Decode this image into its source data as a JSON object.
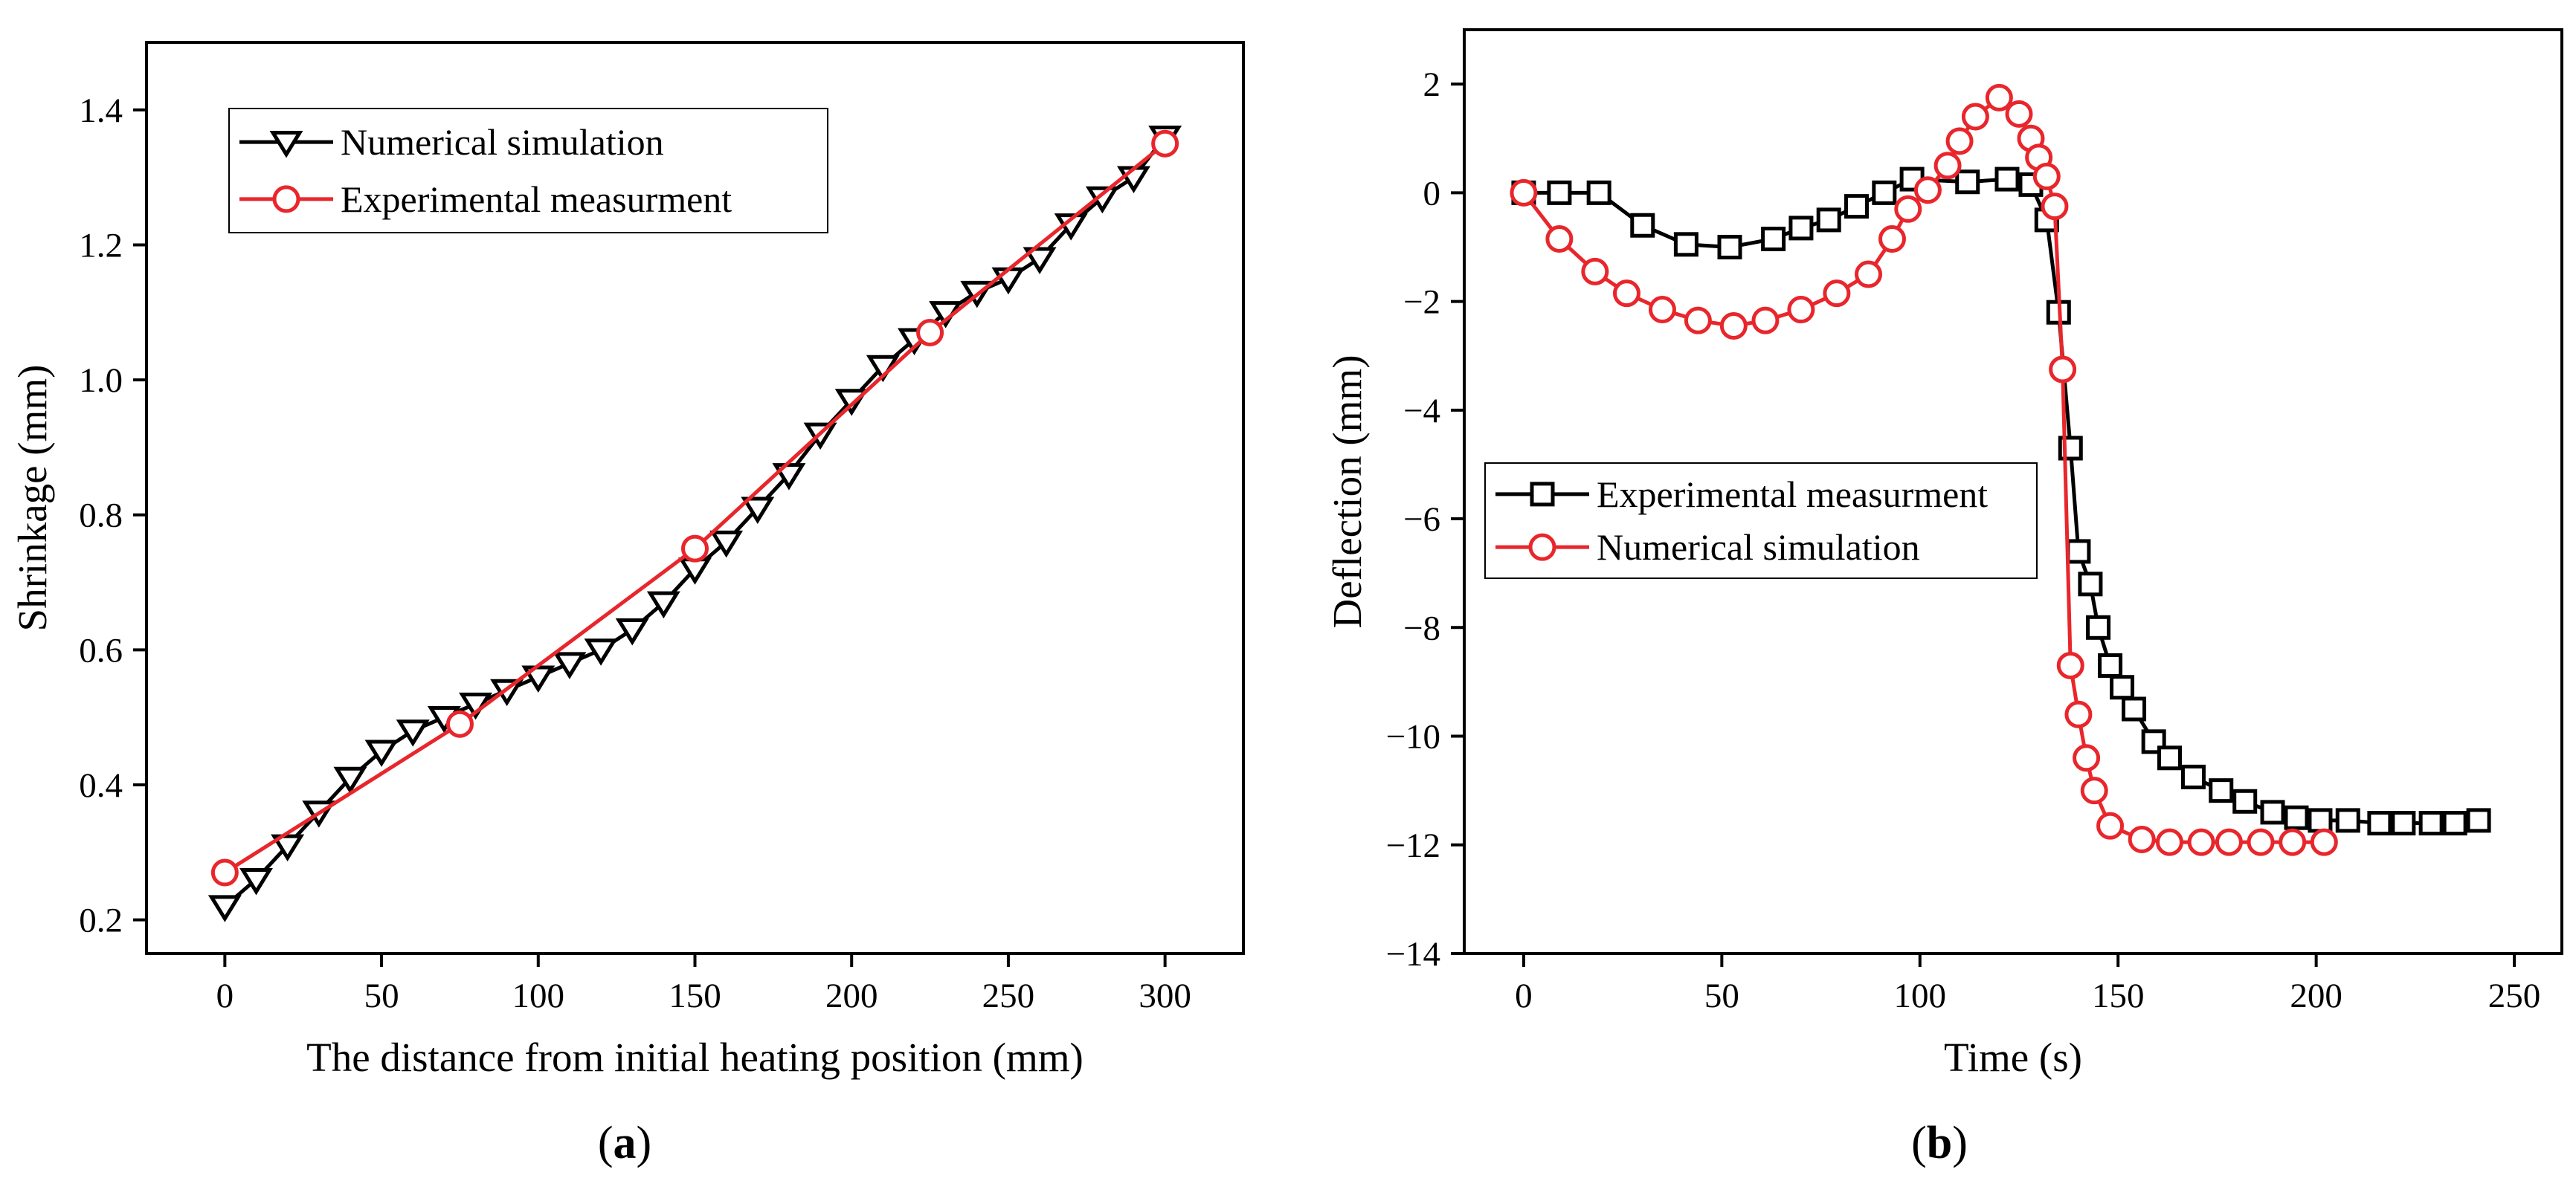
{
  "chart_data": [
    {
      "id": "a",
      "panel_label": "(a)",
      "panel_letter": "a",
      "type": "line",
      "xlabel": "The distance from initial heating position (mm)",
      "ylabel": "Shrinkage (mm)",
      "xlim": [
        -25,
        325
      ],
      "ylim": [
        0.15,
        1.5
      ],
      "xticks": [
        0,
        50,
        100,
        150,
        200,
        250,
        300
      ],
      "xtick_labels": [
        "0",
        "50",
        "100",
        "150",
        "200",
        "250",
        "300"
      ],
      "yticks": [
        0.2,
        0.4,
        0.6,
        0.8,
        1.0,
        1.2,
        1.4
      ],
      "ytick_labels": [
        "0.2",
        "0.4",
        "0.6",
        "0.8",
        "1.0",
        "1.2",
        "1.4"
      ],
      "legend_position": "top-left",
      "series": [
        {
          "name": "Numerical simulation",
          "color": "#000000",
          "marker": "triangle-down",
          "x": [
            0,
            10,
            20,
            30,
            40,
            50,
            60,
            70,
            80,
            90,
            100,
            110,
            120,
            130,
            140,
            150,
            160,
            170,
            180,
            190,
            200,
            210,
            220,
            230,
            240,
            250,
            260,
            270,
            280,
            290,
            300
          ],
          "y": [
            0.22,
            0.26,
            0.31,
            0.36,
            0.41,
            0.45,
            0.48,
            0.5,
            0.52,
            0.54,
            0.56,
            0.58,
            0.6,
            0.63,
            0.67,
            0.72,
            0.76,
            0.81,
            0.86,
            0.92,
            0.97,
            1.02,
            1.06,
            1.1,
            1.13,
            1.15,
            1.18,
            1.23,
            1.27,
            1.3,
            1.36
          ]
        },
        {
          "name": "Experimental measurment",
          "color": "#e8262b",
          "marker": "circle",
          "x": [
            0,
            75,
            150,
            225,
            300
          ],
          "y": [
            0.27,
            0.49,
            0.75,
            1.07,
            1.35
          ]
        }
      ]
    },
    {
      "id": "b",
      "panel_label": "(b)",
      "panel_letter": "b",
      "type": "line",
      "xlabel": "Time (s)",
      "ylabel": "Deflection (mm)",
      "xlim": [
        -15,
        262
      ],
      "ylim": [
        -14,
        3
      ],
      "xticks": [
        0,
        50,
        100,
        150,
        200,
        250
      ],
      "xtick_labels": [
        "0",
        "50",
        "100",
        "150",
        "200",
        "250"
      ],
      "yticks": [
        -14,
        -12,
        -10,
        -8,
        -6,
        -4,
        -2,
        0,
        2
      ],
      "ytick_labels": [
        "−14",
        "−12",
        "−10",
        "−8",
        "−6",
        "−4",
        "−2",
        "0",
        "2"
      ],
      "legend_position": "middle-left",
      "series": [
        {
          "name": "Experimental measurment",
          "color": "#000000",
          "marker": "square",
          "x": [
            0,
            9,
            19,
            30,
            41,
            52,
            63,
            70,
            77,
            84,
            91,
            98,
            112,
            122,
            128,
            132,
            135,
            138,
            140,
            143,
            145,
            148,
            151,
            154,
            159,
            163,
            169,
            176,
            182,
            189,
            195,
            201,
            208,
            216,
            222,
            229,
            235,
            241
          ],
          "y": [
            0,
            0,
            0,
            -0.6,
            -0.95,
            -1.0,
            -0.85,
            -0.65,
            -0.5,
            -0.25,
            0.0,
            0.25,
            0.2,
            0.25,
            0.15,
            -0.5,
            -2.2,
            -4.7,
            -6.6,
            -7.2,
            -8.0,
            -8.7,
            -9.1,
            -9.5,
            -10.1,
            -10.4,
            -10.75,
            -11.0,
            -11.2,
            -11.4,
            -11.5,
            -11.55,
            -11.55,
            -11.6,
            -11.6,
            -11.6,
            -11.6,
            -11.55
          ]
        },
        {
          "name": "Numerical simulation",
          "color": "#e8262b",
          "marker": "circle",
          "x": [
            0,
            9,
            18,
            26,
            35,
            44,
            53,
            61,
            70,
            79,
            87,
            93,
            97,
            102,
            107,
            110,
            114,
            120,
            125,
            128,
            130,
            132,
            134,
            136,
            138,
            140,
            142,
            144,
            148,
            156,
            163,
            171,
            178,
            186,
            194,
            202
          ],
          "y": [
            0,
            -0.85,
            -1.45,
            -1.85,
            -2.15,
            -2.35,
            -2.45,
            -2.35,
            -2.15,
            -1.85,
            -1.5,
            -0.85,
            -0.3,
            0.05,
            0.5,
            0.95,
            1.4,
            1.75,
            1.45,
            1.0,
            0.65,
            0.3,
            -0.25,
            -3.25,
            -8.7,
            -9.6,
            -10.4,
            -11.0,
            -11.65,
            -11.9,
            -11.95,
            -11.95,
            -11.95,
            -11.95,
            -11.95,
            -11.95
          ]
        }
      ]
    }
  ]
}
